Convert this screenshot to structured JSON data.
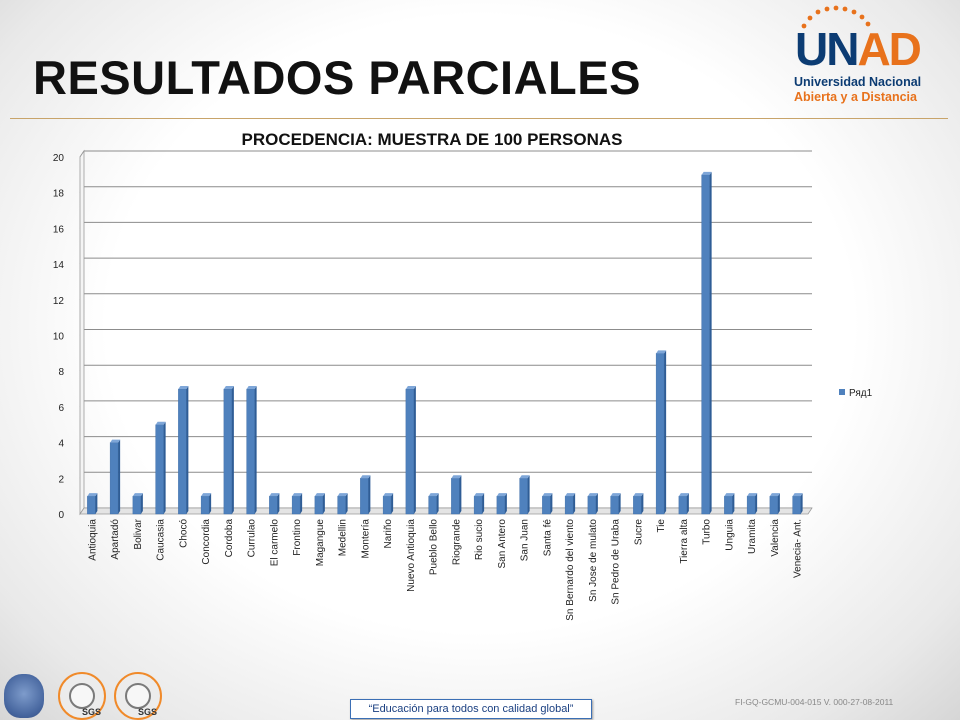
{
  "slide": {
    "title": "RESULTADOS PARCIALES",
    "footer_slogan": "“Educación para todos con calidad global”",
    "footer_code": "FI-GQ-GCMU-004-015 V. 000-27-08-2011"
  },
  "logo": {
    "letters_main": "UN",
    "letters_accent": "AD",
    "line1": "Universidad Nacional",
    "line2": "Abierta y a Distancia"
  },
  "certifications": [
    "SGS",
    "SGS"
  ],
  "colors": {
    "bar": "#4f81bd",
    "bar_top": "#7ea6d8",
    "bar_side": "#2f5d96",
    "logo_blue": "#0c3c73",
    "logo_orange": "#e8721c"
  },
  "chart_data": {
    "type": "bar",
    "title": "PROCEDENCIA: MUESTRA DE 100 PERSONAS",
    "categories": [
      "Antioquia",
      "Apartadó",
      "Bolivar",
      "Caucasia",
      "Chocó",
      "Concordia",
      "Cordoba",
      "Currulao",
      "El carmelo",
      "Frontino",
      "Magangue",
      "Medellin",
      "Montería",
      "Nariño",
      "Nuevo Antioquia",
      "Pueblo Bello",
      "Riogrande",
      "Rio sucio",
      "San Antero",
      "San Juan",
      "Santa fé",
      "Sn Bernardo del viento",
      "Sn Jose de mulato",
      "Sn Pedro de Uraba",
      "Sucre",
      "Tie",
      "Tierra alta",
      "Turbo",
      "Unguia",
      "Uramita",
      "Valencia",
      "Venecia- Ant."
    ],
    "series": [
      {
        "name": "Ряд1",
        "values": [
          1,
          4,
          1,
          5,
          7,
          1,
          7,
          7,
          1,
          1,
          1,
          1,
          2,
          1,
          7,
          1,
          2,
          1,
          1,
          2,
          1,
          1,
          1,
          1,
          1,
          9,
          1,
          19,
          1,
          1,
          1,
          1
        ]
      }
    ],
    "ylim": [
      0,
      20
    ],
    "yticks": [
      0,
      2,
      4,
      6,
      8,
      10,
      12,
      14,
      16,
      18,
      20
    ],
    "grid": true,
    "legend_position": "right"
  }
}
